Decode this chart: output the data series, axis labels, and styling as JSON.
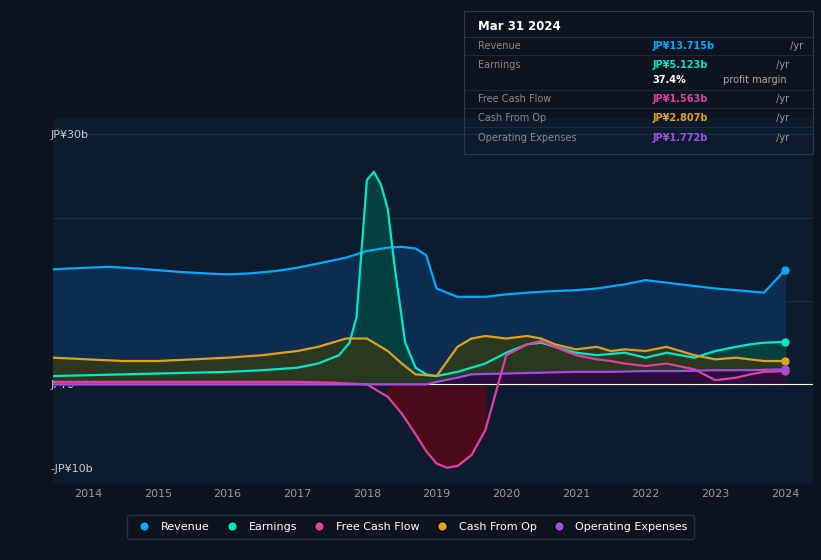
{
  "bg_color": "#0d1420",
  "plot_bg_color": "#0d1b2e",
  "colors": {
    "revenue": "#00aaff",
    "earnings": "#00e8c8",
    "free_cash_flow": "#e040a0",
    "cash_from_op": "#e0a020",
    "operating_expenses": "#a050e0"
  },
  "xticks": [
    2014,
    2015,
    2016,
    2017,
    2018,
    2019,
    2020,
    2021,
    2022,
    2023,
    2024
  ],
  "info_box": {
    "title": "Mar 31 2024",
    "rows": [
      {
        "label": "Revenue",
        "value": "JP¥13.715b",
        "suffix": " /yr",
        "value_color": "#00aaff"
      },
      {
        "label": "Earnings",
        "value": "JP¥5.123b",
        "suffix": " /yr",
        "value_color": "#00e8c8"
      },
      {
        "label": "",
        "value": "37.4%",
        "suffix": " profit margin",
        "value_color": "#ffffff",
        "suffix_color": "#aaaaaa"
      },
      {
        "label": "Free Cash Flow",
        "value": "JP¥1.563b",
        "suffix": " /yr",
        "value_color": "#e040a0"
      },
      {
        "label": "Cash From Op",
        "value": "JP¥2.807b",
        "suffix": " /yr",
        "value_color": "#e0a020"
      },
      {
        "label": "Operating Expenses",
        "value": "JP¥1.772b",
        "suffix": " /yr",
        "value_color": "#a050e0"
      }
    ]
  },
  "revenue": {
    "x": [
      2013.5,
      2014.0,
      2014.3,
      2014.7,
      2015.0,
      2015.3,
      2015.7,
      2016.0,
      2016.3,
      2016.7,
      2017.0,
      2017.3,
      2017.7,
      2017.85,
      2018.0,
      2018.15,
      2018.3,
      2018.5,
      2018.7,
      2018.85,
      2019.0,
      2019.3,
      2019.7,
      2020.0,
      2020.3,
      2020.5,
      2020.7,
      2021.0,
      2021.3,
      2021.7,
      2022.0,
      2022.2,
      2022.4,
      2022.7,
      2023.0,
      2023.3,
      2023.7,
      2024.0
    ],
    "y": [
      13.8,
      14.0,
      14.1,
      13.9,
      13.7,
      13.5,
      13.3,
      13.2,
      13.3,
      13.6,
      14.0,
      14.5,
      15.2,
      15.6,
      16.0,
      16.2,
      16.4,
      16.5,
      16.3,
      15.5,
      11.5,
      10.5,
      10.5,
      10.8,
      11.0,
      11.1,
      11.2,
      11.3,
      11.5,
      12.0,
      12.5,
      12.3,
      12.1,
      11.8,
      11.5,
      11.3,
      11.0,
      13.7
    ]
  },
  "earnings": {
    "x": [
      2013.5,
      2014.0,
      2014.5,
      2015.0,
      2015.5,
      2016.0,
      2016.5,
      2017.0,
      2017.3,
      2017.6,
      2017.75,
      2017.85,
      2018.0,
      2018.1,
      2018.2,
      2018.3,
      2018.4,
      2018.55,
      2018.7,
      2018.85,
      2019.0,
      2019.3,
      2019.7,
      2020.0,
      2020.3,
      2020.5,
      2020.7,
      2021.0,
      2021.3,
      2021.7,
      2022.0,
      2022.3,
      2022.5,
      2022.7,
      2023.0,
      2023.3,
      2023.5,
      2023.7,
      2024.0
    ],
    "y": [
      1.0,
      1.1,
      1.2,
      1.3,
      1.4,
      1.5,
      1.7,
      2.0,
      2.5,
      3.5,
      5.0,
      8.0,
      24.5,
      25.5,
      24.0,
      21.0,
      14.0,
      5.0,
      2.0,
      1.2,
      1.0,
      1.5,
      2.5,
      3.8,
      4.8,
      5.0,
      4.5,
      3.8,
      3.5,
      3.8,
      3.2,
      3.8,
      3.5,
      3.2,
      4.0,
      4.5,
      4.8,
      5.0,
      5.1
    ]
  },
  "free_cash_flow": {
    "x": [
      2013.5,
      2014.0,
      2015.0,
      2016.0,
      2017.0,
      2017.5,
      2018.0,
      2018.3,
      2018.5,
      2018.7,
      2018.85,
      2019.0,
      2019.15,
      2019.3,
      2019.5,
      2019.7,
      2020.0,
      2020.3,
      2020.5,
      2020.7,
      2021.0,
      2021.3,
      2021.5,
      2021.7,
      2022.0,
      2022.3,
      2022.7,
      2023.0,
      2023.3,
      2023.5,
      2023.7,
      2024.0
    ],
    "y": [
      0.3,
      0.3,
      0.3,
      0.3,
      0.3,
      0.2,
      0.0,
      -1.5,
      -3.5,
      -6.0,
      -8.0,
      -9.5,
      -10.0,
      -9.8,
      -8.5,
      -5.5,
      3.5,
      4.8,
      5.2,
      4.5,
      3.5,
      3.0,
      2.8,
      2.5,
      2.2,
      2.5,
      1.8,
      0.5,
      0.8,
      1.2,
      1.5,
      1.6
    ]
  },
  "cash_from_op": {
    "x": [
      2013.5,
      2014.0,
      2014.5,
      2015.0,
      2015.5,
      2016.0,
      2016.5,
      2017.0,
      2017.3,
      2017.5,
      2017.7,
      2018.0,
      2018.3,
      2018.5,
      2018.7,
      2019.0,
      2019.3,
      2019.5,
      2019.7,
      2020.0,
      2020.3,
      2020.5,
      2020.7,
      2021.0,
      2021.3,
      2021.5,
      2021.7,
      2022.0,
      2022.3,
      2022.5,
      2022.7,
      2023.0,
      2023.3,
      2023.7,
      2024.0
    ],
    "y": [
      3.2,
      3.0,
      2.8,
      2.8,
      3.0,
      3.2,
      3.5,
      4.0,
      4.5,
      5.0,
      5.5,
      5.5,
      4.0,
      2.5,
      1.2,
      1.0,
      4.5,
      5.5,
      5.8,
      5.5,
      5.8,
      5.5,
      4.8,
      4.2,
      4.5,
      4.0,
      4.2,
      4.0,
      4.5,
      4.0,
      3.5,
      3.0,
      3.2,
      2.8,
      2.8
    ]
  },
  "operating_expenses": {
    "x": [
      2013.5,
      2014.0,
      2015.0,
      2016.0,
      2017.0,
      2018.0,
      2018.85,
      2019.0,
      2019.3,
      2019.5,
      2020.0,
      2020.5,
      2021.0,
      2021.5,
      2022.0,
      2022.5,
      2023.0,
      2023.5,
      2024.0
    ],
    "y": [
      0.0,
      0.0,
      0.0,
      0.0,
      0.0,
      0.0,
      0.0,
      0.3,
      0.8,
      1.2,
      1.3,
      1.4,
      1.5,
      1.5,
      1.6,
      1.6,
      1.7,
      1.7,
      1.8
    ]
  },
  "legend": [
    {
      "label": "Revenue",
      "color": "#00aaff"
    },
    {
      "label": "Earnings",
      "color": "#00e8c8"
    },
    {
      "label": "Free Cash Flow",
      "color": "#e040a0"
    },
    {
      "label": "Cash From Op",
      "color": "#e0a020"
    },
    {
      "label": "Operating Expenses",
      "color": "#a050e0"
    }
  ]
}
